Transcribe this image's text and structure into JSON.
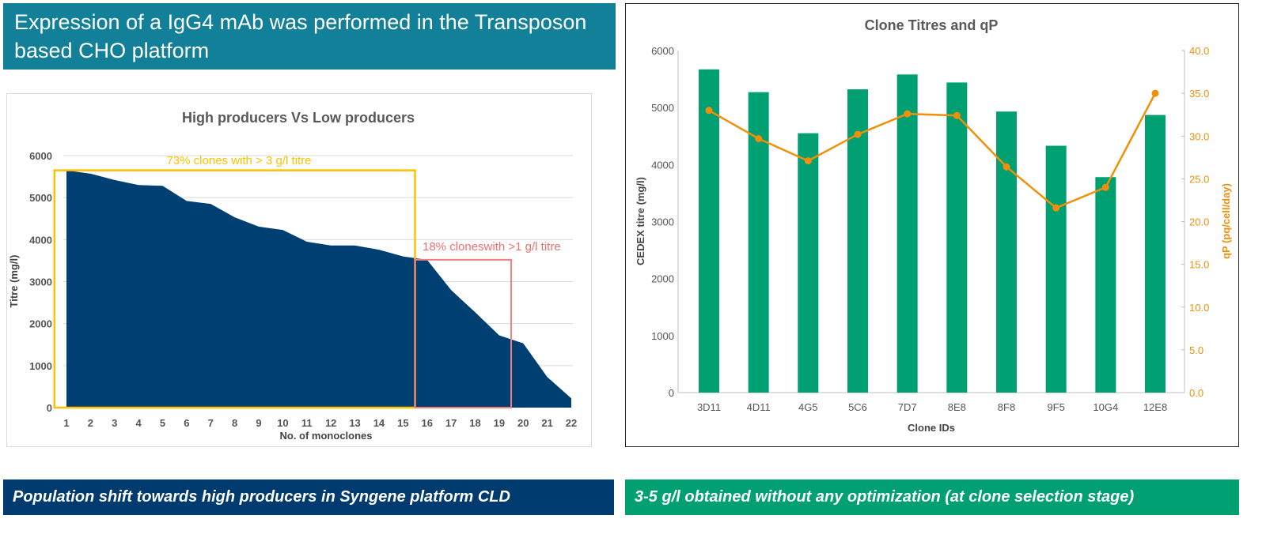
{
  "header": {
    "title": "Expression of a IgG4 mAb was performed in the Transposon based CHO platform"
  },
  "banners": {
    "left": "Population shift towards high producers in Syngene platform CLD",
    "right": "3-5 g/l obtained without any optimization (at clone selection stage)"
  },
  "colors": {
    "header": "#13809a",
    "navy": "#003b6f",
    "green": "#00a073",
    "orange": "#f0900a",
    "yellow_box": "#ffc000",
    "pink_box": "#f08080"
  },
  "chart_data": [
    {
      "type": "area",
      "title": "High producers Vs Low producers",
      "xlabel": "No. of monoclones",
      "ylabel": "Titre (mg/l)",
      "ylim": [
        0,
        6000
      ],
      "yticks": [
        "0",
        "1000",
        "2000",
        "3000",
        "4000",
        "5000",
        "6000"
      ],
      "x": [
        1,
        2,
        3,
        4,
        5,
        6,
        7,
        8,
        9,
        10,
        11,
        12,
        13,
        14,
        15,
        16,
        17,
        18,
        19,
        20,
        21,
        22
      ],
      "values": [
        5650,
        5570,
        5420,
        5300,
        5280,
        4920,
        4850,
        4530,
        4310,
        4230,
        3950,
        3860,
        3860,
        3760,
        3600,
        3520,
        2800,
        2270,
        1720,
        1530,
        730,
        220
      ],
      "grid": true,
      "annotations": [
        {
          "text": "73% clones with > 3 g/l titre",
          "x_range": [
            0.5,
            15.5
          ],
          "y_range": [
            0,
            5650
          ],
          "color": "#ffc000"
        },
        {
          "text": "18% cloneswith >1 g/l titre",
          "x_range": [
            15.5,
            19.5
          ],
          "y_range": [
            0,
            3520
          ],
          "color": "#f08080"
        }
      ]
    },
    {
      "type": "bar+line",
      "title": "Clone Titres and qP",
      "xlabel": "Clone IDs",
      "ylabel": "CEDEX titre (mg/l)",
      "y2label": "qP (pq/cell/day)",
      "ylim": [
        0,
        6000
      ],
      "y2lim": [
        0,
        40
      ],
      "yticks": [
        "0",
        "1000",
        "2000",
        "3000",
        "4000",
        "5000",
        "6000"
      ],
      "y2ticks": [
        "0.0",
        "5.0",
        "10.0",
        "15.0",
        "20.0",
        "25.0",
        "30.0",
        "35.0",
        "40.0"
      ],
      "categories": [
        "3D11",
        "4D11",
        "4G5",
        "5C6",
        "7D7",
        "8E8",
        "8F8",
        "9F5",
        "10G4",
        "12E8"
      ],
      "series": [
        {
          "type": "bar",
          "axis": "left",
          "values": [
            5670,
            5270,
            4550,
            5320,
            5580,
            5440,
            4930,
            4330,
            3780,
            4870
          ]
        },
        {
          "type": "line",
          "axis": "right",
          "values": [
            33.0,
            29.7,
            27.1,
            30.2,
            32.6,
            32.4,
            26.4,
            21.6,
            24.0,
            35.0
          ]
        }
      ],
      "grid": false
    }
  ]
}
